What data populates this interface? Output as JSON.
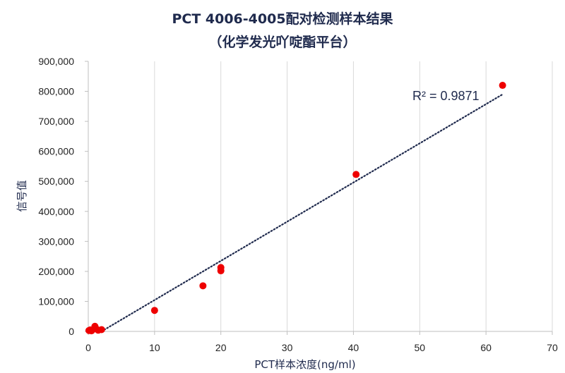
{
  "chart_data": {
    "type": "scatter",
    "title": "PCT 4006-4005配对检测样本结果",
    "subtitle": "（化学发光吖啶酯平台）",
    "xlabel": "PCT样本浓度(ng/ml)",
    "ylabel": "信号值",
    "xlim": [
      0,
      70
    ],
    "ylim": [
      0,
      900000
    ],
    "x_ticks": [
      0,
      10,
      20,
      30,
      40,
      50,
      60,
      70
    ],
    "y_ticks": [
      0,
      100000,
      200000,
      300000,
      400000,
      500000,
      600000,
      700000,
      800000,
      900000
    ],
    "x_tick_labels": [
      "0",
      "10",
      "20",
      "30",
      "40",
      "50",
      "60",
      "70"
    ],
    "y_tick_labels": [
      "0",
      "100,000",
      "200,000",
      "300,000",
      "400,000",
      "500,000",
      "600,000",
      "700,000",
      "800,000",
      "900,000"
    ],
    "grid": "vertical",
    "marker_color": "#ee0000",
    "trendline_color": "#1f2a4d",
    "points": [
      {
        "x": 0.1,
        "y": 3000
      },
      {
        "x": 0.3,
        "y": 5000
      },
      {
        "x": 0.5,
        "y": 2000
      },
      {
        "x": 1.0,
        "y": 17000
      },
      {
        "x": 1.2,
        "y": 8000
      },
      {
        "x": 1.5,
        "y": 4000
      },
      {
        "x": 2.0,
        "y": 6000
      },
      {
        "x": 10.0,
        "y": 70000
      },
      {
        "x": 17.3,
        "y": 152000
      },
      {
        "x": 20.0,
        "y": 202000
      },
      {
        "x": 20.0,
        "y": 213000
      },
      {
        "x": 40.4,
        "y": 523000
      },
      {
        "x": 62.5,
        "y": 820000
      }
    ],
    "trendline": {
      "type": "linear",
      "x_range": [
        2.0,
        62.5
      ],
      "y_range": [
        0,
        790000
      ],
      "r2_label": "R² = 0.9871"
    }
  }
}
